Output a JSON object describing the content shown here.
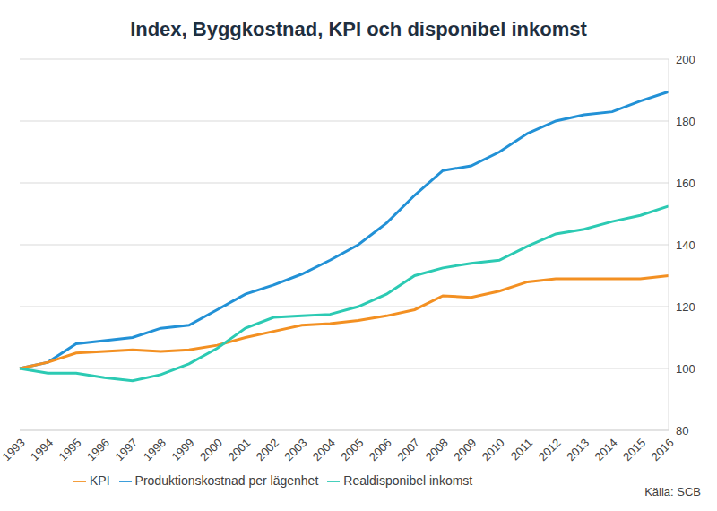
{
  "chart_data": {
    "type": "line",
    "title": "Index, Byggkostnad, KPI och disponibel inkomst",
    "source": "Källa: SCB",
    "categories": [
      "1993",
      "1994",
      "1995",
      "1996",
      "1997",
      "1998",
      "1999",
      "2000",
      "2001",
      "2002",
      "2003",
      "2004",
      "2005",
      "2006",
      "2007",
      "2008",
      "2009",
      "2010",
      "2011",
      "2012",
      "2013",
      "2014",
      "2015",
      "2016"
    ],
    "series": [
      {
        "name": "Produktionskostnad per lägenhet",
        "color": "#2291d6",
        "values": [
          100,
          102,
          108,
          109,
          110,
          113,
          114,
          119,
          124,
          127,
          130.5,
          135,
          140,
          147,
          156,
          164,
          165.5,
          170,
          176,
          180,
          182,
          183,
          186.5,
          189.5
        ]
      },
      {
        "name": "KPI",
        "color": "#f39022",
        "values": [
          100,
          102,
          105,
          105.5,
          106,
          105.5,
          106,
          107.5,
          110,
          112,
          114,
          114.5,
          115.5,
          117,
          119,
          123.5,
          123,
          125,
          128,
          129,
          129,
          129,
          129,
          130
        ]
      },
      {
        "name": "Realdisponibel inkomst",
        "color": "#2ccab3",
        "values": [
          100,
          98.5,
          98.5,
          97,
          96,
          98,
          101.5,
          106.5,
          113,
          116.5,
          117,
          117.5,
          120,
          124,
          130,
          132.5,
          134,
          135,
          139.5,
          143.5,
          145,
          147.5,
          149.5,
          152.5
        ]
      }
    ],
    "ylim": [
      80,
      200
    ],
    "yticks": [
      80,
      100,
      120,
      140,
      160,
      180,
      200
    ],
    "grid": true,
    "legend": "bottom"
  }
}
